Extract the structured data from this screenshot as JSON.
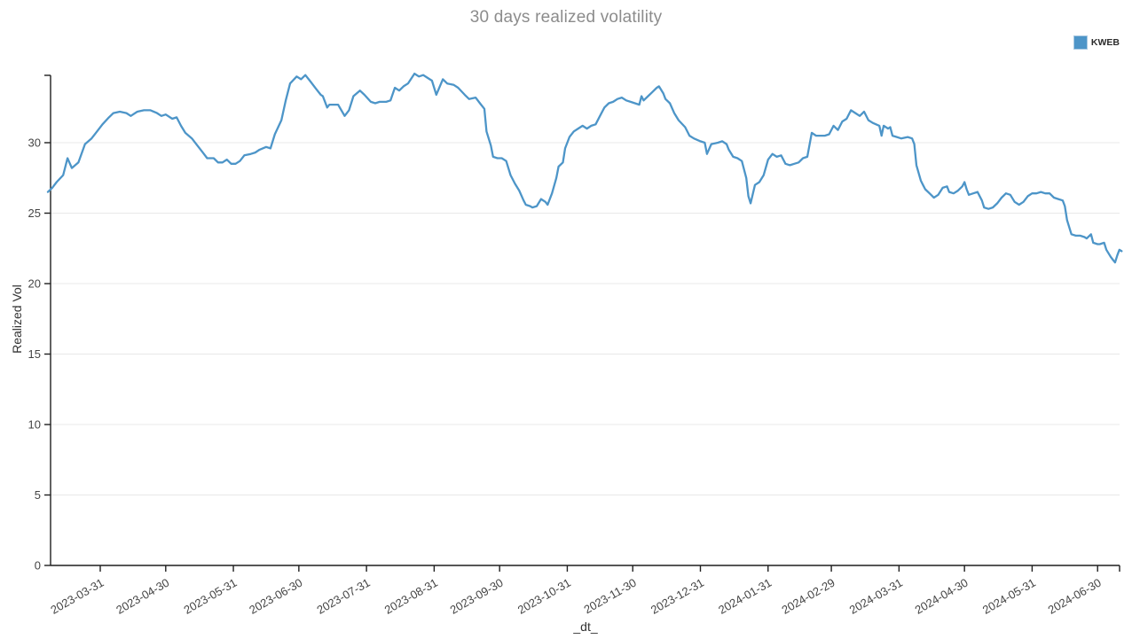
{
  "title": "30 days realized volatility",
  "legend": {
    "items": [
      {
        "label": "KWEB",
        "color": "#4d95c8"
      }
    ]
  },
  "colors": {
    "line": "#4d95c8",
    "grid": "#e8e8e8",
    "axis": "#1f1f1f",
    "tick_text": "#444444",
    "title_text": "#8c8c8c"
  },
  "chart_data": {
    "type": "line",
    "title": "30 days realized volatility",
    "xlabel": "_dt_",
    "ylabel": "Realized Vol",
    "ylim": [
      0,
      35
    ],
    "grid": true,
    "legend_position": "top-right",
    "y_ticks": [
      0,
      5,
      10,
      15,
      20,
      25,
      30
    ],
    "x_ticks": [
      "2023-03-31",
      "2023-04-30",
      "2023-05-31",
      "2023-06-30",
      "2023-07-31",
      "2023-08-31",
      "2023-09-30",
      "2023-10-31",
      "2023-11-30",
      "2023-12-31",
      "2024-01-31",
      "2024-02-29",
      "2024-03-31",
      "2024-04-30",
      "2024-05-31",
      "2024-06-30"
    ],
    "series": [
      {
        "name": "KWEB",
        "color": "#4d95c8",
        "points": [
          [
            "2023-03-07",
            26.5
          ],
          [
            "2023-03-09",
            26.8
          ],
          [
            "2023-03-11",
            27.2
          ],
          [
            "2023-03-14",
            27.7
          ],
          [
            "2023-03-16",
            28.9
          ],
          [
            "2023-03-18",
            28.2
          ],
          [
            "2023-03-21",
            28.6
          ],
          [
            "2023-03-24",
            29.9
          ],
          [
            "2023-03-27",
            30.3
          ],
          [
            "2023-03-29",
            30.7
          ],
          [
            "2023-04-01",
            31.3
          ],
          [
            "2023-04-04",
            31.8
          ],
          [
            "2023-04-06",
            32.1
          ],
          [
            "2023-04-09",
            32.2
          ],
          [
            "2023-04-12",
            32.1
          ],
          [
            "2023-04-14",
            31.9
          ],
          [
            "2023-04-17",
            32.2
          ],
          [
            "2023-04-20",
            32.3
          ],
          [
            "2023-04-23",
            32.3
          ],
          [
            "2023-04-26",
            32.1
          ],
          [
            "2023-04-28",
            31.9
          ],
          [
            "2023-04-30",
            32.0
          ],
          [
            "2023-05-03",
            31.7
          ],
          [
            "2023-05-05",
            31.8
          ],
          [
            "2023-05-07",
            31.2
          ],
          [
            "2023-05-09",
            30.7
          ],
          [
            "2023-05-12",
            30.3
          ],
          [
            "2023-05-14",
            29.9
          ],
          [
            "2023-05-17",
            29.3
          ],
          [
            "2023-05-19",
            28.9
          ],
          [
            "2023-05-22",
            28.9
          ],
          [
            "2023-05-24",
            28.6
          ],
          [
            "2023-05-26",
            28.6
          ],
          [
            "2023-05-28",
            28.8
          ],
          [
            "2023-05-30",
            28.5
          ],
          [
            "2023-06-01",
            28.5
          ],
          [
            "2023-06-03",
            28.7
          ],
          [
            "2023-06-05",
            29.1
          ],
          [
            "2023-06-08",
            29.2
          ],
          [
            "2023-06-10",
            29.3
          ],
          [
            "2023-06-12",
            29.5
          ],
          [
            "2023-06-15",
            29.7
          ],
          [
            "2023-06-17",
            29.6
          ],
          [
            "2023-06-19",
            30.6
          ],
          [
            "2023-06-22",
            31.6
          ],
          [
            "2023-06-24",
            33.0
          ],
          [
            "2023-06-26",
            34.2
          ],
          [
            "2023-06-29",
            34.7
          ],
          [
            "2023-07-01",
            34.5
          ],
          [
            "2023-07-03",
            34.8
          ],
          [
            "2023-07-05",
            34.4
          ],
          [
            "2023-07-08",
            33.8
          ],
          [
            "2023-07-10",
            33.4
          ],
          [
            "2023-07-11",
            33.3
          ],
          [
            "2023-07-13",
            32.5
          ],
          [
            "2023-07-14",
            32.7
          ],
          [
            "2023-07-16",
            32.7
          ],
          [
            "2023-07-18",
            32.7
          ],
          [
            "2023-07-21",
            31.9
          ],
          [
            "2023-07-23",
            32.3
          ],
          [
            "2023-07-25",
            33.3
          ],
          [
            "2023-07-28",
            33.7
          ],
          [
            "2023-07-30",
            33.4
          ],
          [
            "2023-08-02",
            32.9
          ],
          [
            "2023-08-04",
            32.8
          ],
          [
            "2023-08-06",
            32.9
          ],
          [
            "2023-08-09",
            32.9
          ],
          [
            "2023-08-11",
            33.0
          ],
          [
            "2023-08-13",
            33.9
          ],
          [
            "2023-08-15",
            33.7
          ],
          [
            "2023-08-17",
            34.0
          ],
          [
            "2023-08-19",
            34.2
          ],
          [
            "2023-08-22",
            34.9
          ],
          [
            "2023-08-24",
            34.7
          ],
          [
            "2023-08-26",
            34.8
          ],
          [
            "2023-08-28",
            34.6
          ],
          [
            "2023-08-30",
            34.4
          ],
          [
            "2023-09-01",
            33.4
          ],
          [
            "2023-09-04",
            34.5
          ],
          [
            "2023-09-06",
            34.2
          ],
          [
            "2023-09-09",
            34.1
          ],
          [
            "2023-09-11",
            33.9
          ],
          [
            "2023-09-14",
            33.4
          ],
          [
            "2023-09-16",
            33.1
          ],
          [
            "2023-09-19",
            33.2
          ],
          [
            "2023-09-21",
            32.8
          ],
          [
            "2023-09-23",
            32.4
          ],
          [
            "2023-09-24",
            30.8
          ],
          [
            "2023-09-26",
            29.8
          ],
          [
            "2023-09-27",
            29.0
          ],
          [
            "2023-09-29",
            28.9
          ],
          [
            "2023-10-01",
            28.9
          ],
          [
            "2023-10-03",
            28.7
          ],
          [
            "2023-10-05",
            27.7
          ],
          [
            "2023-10-07",
            27.1
          ],
          [
            "2023-10-09",
            26.6
          ],
          [
            "2023-10-11",
            25.9
          ],
          [
            "2023-10-12",
            25.6
          ],
          [
            "2023-10-14",
            25.5
          ],
          [
            "2023-10-15",
            25.4
          ],
          [
            "2023-10-17",
            25.5
          ],
          [
            "2023-10-19",
            26.0
          ],
          [
            "2023-10-21",
            25.8
          ],
          [
            "2023-10-22",
            25.6
          ],
          [
            "2023-10-24",
            26.4
          ],
          [
            "2023-10-26",
            27.5
          ],
          [
            "2023-10-27",
            28.3
          ],
          [
            "2023-10-29",
            28.6
          ],
          [
            "2023-10-30",
            29.6
          ],
          [
            "2023-11-01",
            30.4
          ],
          [
            "2023-11-03",
            30.8
          ],
          [
            "2023-11-05",
            31.0
          ],
          [
            "2023-11-07",
            31.2
          ],
          [
            "2023-11-09",
            31.0
          ],
          [
            "2023-11-11",
            31.2
          ],
          [
            "2023-11-13",
            31.3
          ],
          [
            "2023-11-15",
            31.9
          ],
          [
            "2023-11-17",
            32.5
          ],
          [
            "2023-11-19",
            32.8
          ],
          [
            "2023-11-21",
            32.9
          ],
          [
            "2023-11-23",
            33.1
          ],
          [
            "2023-11-25",
            33.2
          ],
          [
            "2023-11-27",
            33.0
          ],
          [
            "2023-11-29",
            32.9
          ],
          [
            "2023-12-01",
            32.8
          ],
          [
            "2023-12-03",
            32.7
          ],
          [
            "2023-12-04",
            33.3
          ],
          [
            "2023-12-05",
            33.0
          ],
          [
            "2023-12-07",
            33.3
          ],
          [
            "2023-12-09",
            33.6
          ],
          [
            "2023-12-11",
            33.9
          ],
          [
            "2023-12-12",
            34.0
          ],
          [
            "2023-12-14",
            33.5
          ],
          [
            "2023-12-15",
            33.1
          ],
          [
            "2023-12-17",
            32.8
          ],
          [
            "2023-12-19",
            32.1
          ],
          [
            "2023-12-21",
            31.6
          ],
          [
            "2023-12-24",
            31.1
          ],
          [
            "2023-12-26",
            30.5
          ],
          [
            "2023-12-28",
            30.3
          ],
          [
            "2023-12-31",
            30.1
          ],
          [
            "2024-01-02",
            30.0
          ],
          [
            "2024-01-03",
            29.2
          ],
          [
            "2024-01-05",
            29.9
          ],
          [
            "2024-01-08",
            30.0
          ],
          [
            "2024-01-10",
            30.1
          ],
          [
            "2024-01-12",
            29.9
          ],
          [
            "2024-01-13",
            29.5
          ],
          [
            "2024-01-15",
            29.0
          ],
          [
            "2024-01-17",
            28.9
          ],
          [
            "2024-01-19",
            28.7
          ],
          [
            "2024-01-21",
            27.5
          ],
          [
            "2024-01-22",
            26.2
          ],
          [
            "2024-01-23",
            25.7
          ],
          [
            "2024-01-25",
            27.0
          ],
          [
            "2024-01-27",
            27.2
          ],
          [
            "2024-01-29",
            27.7
          ],
          [
            "2024-01-31",
            28.8
          ],
          [
            "2024-02-02",
            29.2
          ],
          [
            "2024-02-04",
            29.0
          ],
          [
            "2024-02-06",
            29.1
          ],
          [
            "2024-02-08",
            28.5
          ],
          [
            "2024-02-10",
            28.4
          ],
          [
            "2024-02-12",
            28.5
          ],
          [
            "2024-02-14",
            28.6
          ],
          [
            "2024-02-16",
            28.9
          ],
          [
            "2024-02-18",
            29.0
          ],
          [
            "2024-02-20",
            30.7
          ],
          [
            "2024-02-22",
            30.5
          ],
          [
            "2024-02-24",
            30.5
          ],
          [
            "2024-02-26",
            30.5
          ],
          [
            "2024-02-28",
            30.6
          ],
          [
            "2024-03-01",
            31.2
          ],
          [
            "2024-03-03",
            30.9
          ],
          [
            "2024-03-05",
            31.5
          ],
          [
            "2024-03-07",
            31.7
          ],
          [
            "2024-03-09",
            32.3
          ],
          [
            "2024-03-11",
            32.1
          ],
          [
            "2024-03-13",
            31.9
          ],
          [
            "2024-03-15",
            32.2
          ],
          [
            "2024-03-17",
            31.6
          ],
          [
            "2024-03-19",
            31.4
          ],
          [
            "2024-03-22",
            31.2
          ],
          [
            "2024-03-23",
            30.5
          ],
          [
            "2024-03-24",
            31.2
          ],
          [
            "2024-03-26",
            31.0
          ],
          [
            "2024-03-27",
            31.1
          ],
          [
            "2024-03-28",
            30.5
          ],
          [
            "2024-03-30",
            30.4
          ],
          [
            "2024-04-01",
            30.3
          ],
          [
            "2024-04-04",
            30.4
          ],
          [
            "2024-04-06",
            30.3
          ],
          [
            "2024-04-07",
            29.9
          ],
          [
            "2024-04-08",
            28.4
          ],
          [
            "2024-04-10",
            27.3
          ],
          [
            "2024-04-11",
            27.0
          ],
          [
            "2024-04-12",
            26.7
          ],
          [
            "2024-04-14",
            26.4
          ],
          [
            "2024-04-16",
            26.1
          ],
          [
            "2024-04-18",
            26.3
          ],
          [
            "2024-04-20",
            26.8
          ],
          [
            "2024-04-22",
            26.9
          ],
          [
            "2024-04-23",
            26.5
          ],
          [
            "2024-04-25",
            26.4
          ],
          [
            "2024-04-27",
            26.6
          ],
          [
            "2024-04-29",
            26.9
          ],
          [
            "2024-04-30",
            27.2
          ],
          [
            "2024-05-01",
            26.7
          ],
          [
            "2024-05-02",
            26.3
          ],
          [
            "2024-05-04",
            26.4
          ],
          [
            "2024-05-06",
            26.5
          ],
          [
            "2024-05-08",
            25.9
          ],
          [
            "2024-05-09",
            25.4
          ],
          [
            "2024-05-11",
            25.3
          ],
          [
            "2024-05-13",
            25.4
          ],
          [
            "2024-05-15",
            25.7
          ],
          [
            "2024-05-17",
            26.1
          ],
          [
            "2024-05-19",
            26.4
          ],
          [
            "2024-05-21",
            26.3
          ],
          [
            "2024-05-23",
            25.8
          ],
          [
            "2024-05-25",
            25.6
          ],
          [
            "2024-05-27",
            25.8
          ],
          [
            "2024-05-29",
            26.2
          ],
          [
            "2024-05-31",
            26.4
          ],
          [
            "2024-06-02",
            26.4
          ],
          [
            "2024-06-04",
            26.5
          ],
          [
            "2024-06-06",
            26.4
          ],
          [
            "2024-06-08",
            26.4
          ],
          [
            "2024-06-10",
            26.1
          ],
          [
            "2024-06-12",
            26.0
          ],
          [
            "2024-06-14",
            25.9
          ],
          [
            "2024-06-15",
            25.5
          ],
          [
            "2024-06-16",
            24.5
          ],
          [
            "2024-06-18",
            23.5
          ],
          [
            "2024-06-20",
            23.4
          ],
          [
            "2024-06-22",
            23.4
          ],
          [
            "2024-06-24",
            23.3
          ],
          [
            "2024-06-25",
            23.2
          ],
          [
            "2024-06-27",
            23.5
          ],
          [
            "2024-06-28",
            22.9
          ],
          [
            "2024-06-30",
            22.8
          ],
          [
            "2024-07-01",
            22.8
          ],
          [
            "2024-07-03",
            22.9
          ],
          [
            "2024-07-04",
            22.4
          ],
          [
            "2024-07-06",
            21.9
          ],
          [
            "2024-07-07",
            21.7
          ],
          [
            "2024-07-08",
            21.5
          ],
          [
            "2024-07-09",
            22.0
          ],
          [
            "2024-07-10",
            22.4
          ],
          [
            "2024-07-11",
            22.3
          ]
        ]
      }
    ]
  }
}
